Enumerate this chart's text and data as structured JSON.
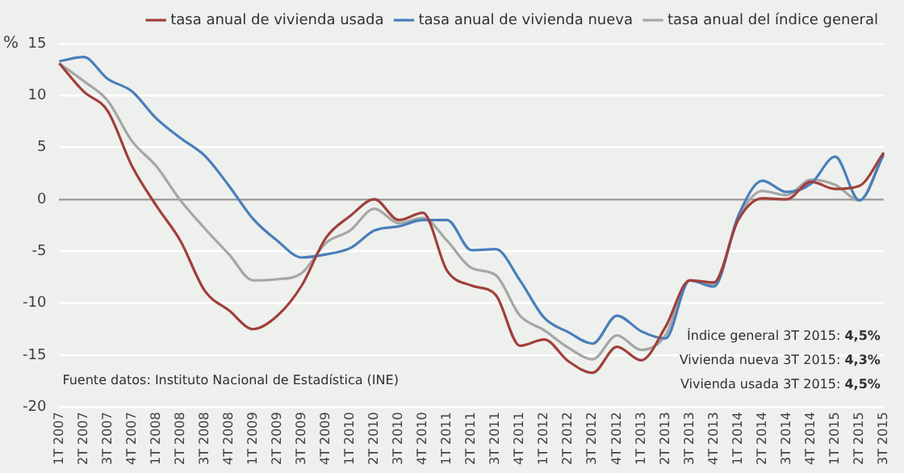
{
  "chart_data": {
    "type": "line",
    "ylabel": "%",
    "categories": [
      "1T 2007",
      "2T 2007",
      "3T 2007",
      "4T 2007",
      "1T 2008",
      "2T 2008",
      "3T 2008",
      "4T 2008",
      "1T 2009",
      "2T 2009",
      "3T 2009",
      "4T 2009",
      "1T 2010",
      "2T 2010",
      "3T 2010",
      "4T 2010",
      "1T 2011",
      "2T 2011",
      "3T 2011",
      "4T 2011",
      "1T 2012",
      "2T 2012",
      "3T 2012",
      "4T 2012",
      "1T 2013",
      "2T 2013",
      "3T 2013",
      "4T 2013",
      "1T 2014",
      "2T 2014",
      "3T 2014",
      "4T 2014",
      "1T 2015",
      "2T 2015",
      "3T 2015"
    ],
    "series": [
      {
        "name": "tasa anual de vivienda usada",
        "color": "#a0403c",
        "values": [
          13.1,
          10.4,
          8.5,
          3.2,
          -0.6,
          -4,
          -8.8,
          -10.7,
          -12.5,
          -11.2,
          -8.3,
          -3.7,
          -1.6,
          0,
          -2,
          -1.3,
          -6.9,
          -8.3,
          -9.2,
          -14.1,
          -13.5,
          -15.6,
          -16.7,
          -14.2,
          -15.5,
          -12.3,
          -7.8,
          -8,
          -2,
          0.1,
          0,
          1.7,
          1,
          1.3,
          4.5
        ]
      },
      {
        "name": "tasa anual de vivienda nueva",
        "color": "#4a7ebb",
        "values": [
          13.3,
          13.7,
          11.6,
          10.4,
          7.8,
          5.9,
          4.2,
          1.3,
          -1.9,
          -4,
          -5.6,
          -5.3,
          -4.7,
          -3,
          -2.6,
          -2,
          -2,
          -4.9,
          -4.8,
          -7.8,
          -11.4,
          -12.8,
          -13.9,
          -11.2,
          -12.7,
          -13.4,
          -7.8,
          -8.4,
          -1.6,
          1.8,
          0.7,
          1.5,
          4.1,
          -0.1,
          4.3
        ]
      },
      {
        "name": "tasa anual del índice general",
        "color": "#a6a6a6",
        "values": [
          13.1,
          11.4,
          9.5,
          5.6,
          3.2,
          -0.1,
          -2.8,
          -5.3,
          -7.8,
          -7.7,
          -7.1,
          -4.2,
          -3,
          -0.9,
          -2.3,
          -1.8,
          -4,
          -6.6,
          -7.3,
          -11.2,
          -12.6,
          -14.3,
          -15.4,
          -13.1,
          -14.5,
          -13.1,
          -7.8,
          -8.2,
          -1.8,
          0.8,
          0.4,
          1.9,
          1.4,
          -0.1,
          4.5
        ]
      }
    ],
    "ylim": [
      -20,
      15
    ],
    "yticks": [
      -20,
      -15,
      -10,
      -5,
      0,
      5,
      10,
      15
    ],
    "grid": "y",
    "legend": "top",
    "marker": "none",
    "line_style": "solid",
    "annotations": [
      "Fuente datos: Instituto Nacional de Estadística (INE)",
      "Índice general 3T 2015: 4,5%",
      "Vivienda nueva 3T 2015: 4,3%",
      "Vivienda usada 3T 2015: 4,5%"
    ]
  }
}
